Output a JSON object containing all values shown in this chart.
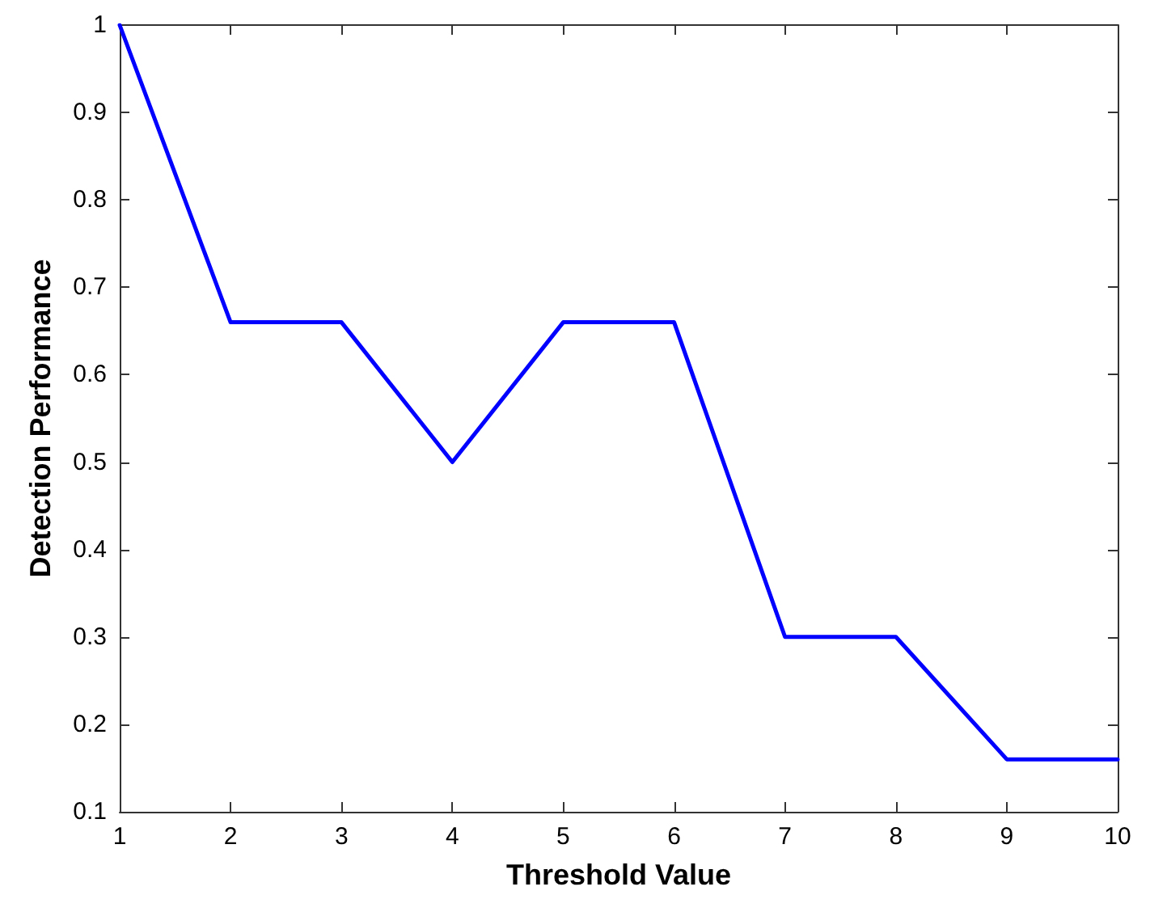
{
  "chart_data": {
    "type": "line",
    "xlabel": "Threshold Value",
    "ylabel": "Detection Performance",
    "x": [
      1,
      2,
      3,
      4,
      5,
      6,
      7,
      8,
      9,
      10
    ],
    "series": [
      {
        "color": "#0000ff",
        "values": [
          1,
          0.66,
          0.66,
          0.5,
          0.66,
          0.66,
          0.3,
          0.3,
          0.16,
          0.16
        ]
      }
    ],
    "xlim": [
      1,
      10
    ],
    "xticks": [
      1,
      2,
      3,
      4,
      5,
      6,
      7,
      8,
      9,
      10
    ],
    "ylim": [
      0.1,
      1
    ],
    "yticks": [
      0.1,
      0.2,
      0.3,
      0.4,
      0.5,
      0.6,
      0.7,
      0.8,
      0.9,
      1
    ],
    "marker": "none",
    "line_style": "solid"
  }
}
